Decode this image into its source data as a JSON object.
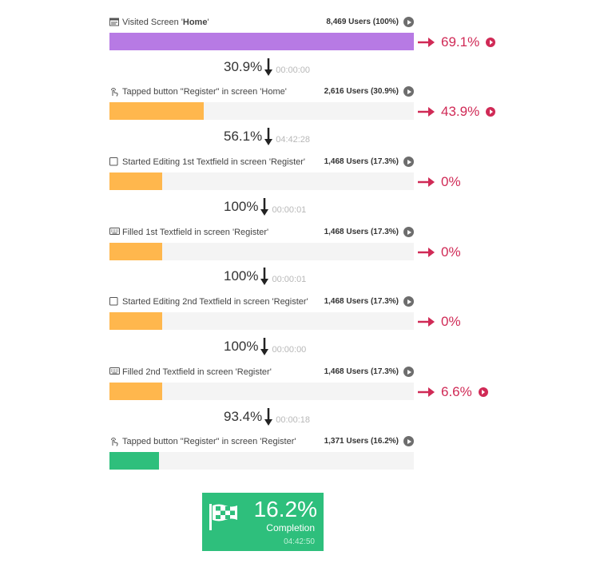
{
  "colors": {
    "first_step": "#b77ae4",
    "mid_steps": "#ffb74d",
    "final_step": "#2ebf7c",
    "dropout": "#d02a56",
    "track": "#f4f4f4"
  },
  "steps": [
    {
      "icon": "screen-icon",
      "label_prefix": "Visited Screen '",
      "label_bold": "Home",
      "label_suffix": "'",
      "users": "8,469 Users (100%)",
      "share": 100,
      "dropout": "69.1%",
      "dropout_play": true
    },
    {
      "icon": "tap-icon",
      "label_prefix": "Tapped button \"Register\" in screen 'Home'",
      "label_bold": "",
      "label_suffix": "",
      "users": "2,616 Users (30.9%)",
      "share": 30.9,
      "dropout": "43.9%",
      "dropout_play": true
    },
    {
      "icon": "textfield-icon",
      "label_prefix": "Started Editing 1st Textfield in screen 'Register'",
      "label_bold": "",
      "label_suffix": "",
      "users": "1,468 Users (17.3%)",
      "share": 17.3,
      "dropout": "0%",
      "dropout_play": false
    },
    {
      "icon": "keyboard-icon",
      "label_prefix": "Filled 1st Textfield in screen 'Register'",
      "label_bold": "",
      "label_suffix": "",
      "users": "1,468 Users (17.3%)",
      "share": 17.3,
      "dropout": "0%",
      "dropout_play": false
    },
    {
      "icon": "textfield-icon",
      "label_prefix": "Started Editing 2nd Textfield in screen 'Register'",
      "label_bold": "",
      "label_suffix": "",
      "users": "1,468 Users (17.3%)",
      "share": 17.3,
      "dropout": "0%",
      "dropout_play": false
    },
    {
      "icon": "keyboard-icon",
      "label_prefix": "Filled 2nd Textfield in screen 'Register'",
      "label_bold": "",
      "label_suffix": "",
      "users": "1,468 Users (17.3%)",
      "share": 17.3,
      "dropout": "6.6%",
      "dropout_play": true
    },
    {
      "icon": "tap-icon",
      "label_prefix": "Tapped button \"Register\" in screen 'Register'",
      "label_bold": "",
      "label_suffix": "",
      "users": "1,371 Users (16.2%)",
      "share": 16.2,
      "dropout": "",
      "dropout_play": false
    }
  ],
  "conversions": [
    {
      "pct": "30.9%",
      "time": "00:00:00"
    },
    {
      "pct": "56.1%",
      "time": "04:42:28"
    },
    {
      "pct": "100%",
      "time": "00:00:01"
    },
    {
      "pct": "100%",
      "time": "00:00:01"
    },
    {
      "pct": "100%",
      "time": "00:00:00"
    },
    {
      "pct": "93.4%",
      "time": "00:00:18"
    }
  ],
  "completion": {
    "icon": "checkered-flag-icon",
    "pct": "16.2%",
    "label": "Completion",
    "time": "04:42:50"
  }
}
